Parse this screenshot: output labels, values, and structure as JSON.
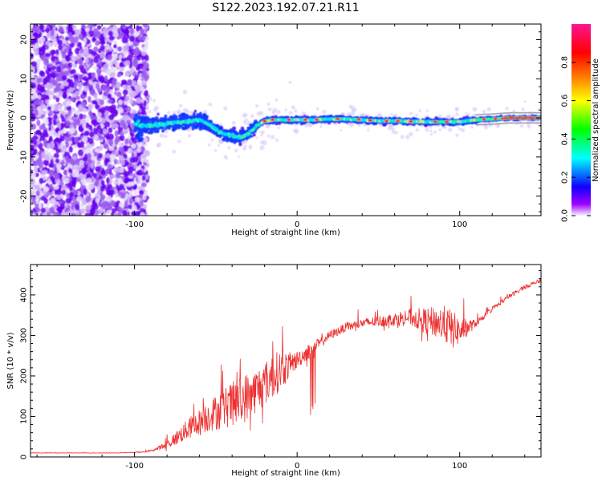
{
  "title": "S122.2023.192.07.21.R11",
  "chart_data": [
    {
      "type": "heatmap",
      "xlabel": "Height of straight line (km)",
      "ylabel": "Frequency (Hz)",
      "xlim": [
        -164,
        150
      ],
      "ylim": [
        -25,
        24
      ],
      "x_ticks": [
        -100,
        0,
        100
      ],
      "y_ticks": [
        -20,
        -10,
        0,
        10,
        20
      ],
      "grid": false,
      "colorbar": {
        "label": "Normalized spectral amplitude",
        "range": [
          0,
          1
        ],
        "ticks": [
          "0.0",
          "0.2",
          "0.4",
          "0.6",
          "0.8"
        ],
        "tick_values": [
          0,
          0.2,
          0.4,
          0.6,
          0.8
        ],
        "colors": [
          "#f3f3ff",
          "#a000ff",
          "#0000ff",
          "#00ffff",
          "#00ff00",
          "#ffff00",
          "#ff8000",
          "#ff0000",
          "#ff1493"
        ]
      },
      "ridge": {
        "x": [
          -100,
          -90,
          -80,
          -70,
          -60,
          -55,
          -50,
          -45,
          -40,
          -35,
          -30,
          -25,
          -20,
          -15,
          -10,
          0,
          10,
          20,
          30,
          40,
          50,
          60,
          70,
          80,
          90,
          100,
          110,
          120,
          130,
          140,
          150
        ],
        "y": [
          -1.5,
          -2,
          -1.5,
          -1,
          -0.5,
          -1.5,
          -3,
          -4,
          -4.5,
          -5,
          -4,
          -2,
          -0.8,
          -0.5,
          -0.5,
          -0.5,
          -0.5,
          -0.3,
          -0.3,
          -0.5,
          -0.8,
          -0.8,
          -0.9,
          -1,
          -1,
          -1,
          -0.5,
          -0.3,
          0,
          0,
          0
        ]
      }
    },
    {
      "type": "line",
      "xlabel": "Height of straight line (km)",
      "ylabel": "SNR (10 * v/v)",
      "xlim": [
        -164,
        150
      ],
      "ylim": [
        0,
        475
      ],
      "x_ticks": [
        -100,
        0,
        100
      ],
      "y_ticks": [
        0,
        100,
        200,
        300,
        400
      ],
      "grid": false,
      "series": [
        {
          "color": "#ee3030",
          "x": [
            -164,
            -150,
            -130,
            -110,
            -95,
            -90,
            -85,
            -80,
            -75,
            -70,
            -65,
            -60,
            -55,
            -50,
            -45,
            -40,
            -35,
            -30,
            -25,
            -20,
            -15,
            -10,
            -5,
            0,
            5,
            10,
            15,
            20,
            30,
            40,
            50,
            60,
            70,
            80,
            90,
            95,
            100,
            110,
            120,
            130,
            140,
            150
          ],
          "y": [
            10,
            10,
            10,
            10,
            12,
            15,
            22,
            30,
            45,
            60,
            75,
            85,
            100,
            110,
            120,
            130,
            140,
            150,
            165,
            180,
            200,
            215,
            225,
            240,
            255,
            270,
            285,
            300,
            320,
            330,
            335,
            340,
            345,
            335,
            330,
            315,
            310,
            330,
            365,
            395,
            420,
            435
          ],
          "noise": [
            1,
            1,
            1,
            1,
            2,
            4,
            10,
            20,
            30,
            40,
            50,
            60,
            70,
            80,
            90,
            100,
            110,
            110,
            100,
            100,
            100,
            90,
            60,
            40,
            35,
            30,
            20,
            20,
            20,
            20,
            25,
            30,
            40,
            60,
            80,
            90,
            60,
            15,
            10,
            10,
            10,
            10
          ]
        }
      ]
    }
  ]
}
